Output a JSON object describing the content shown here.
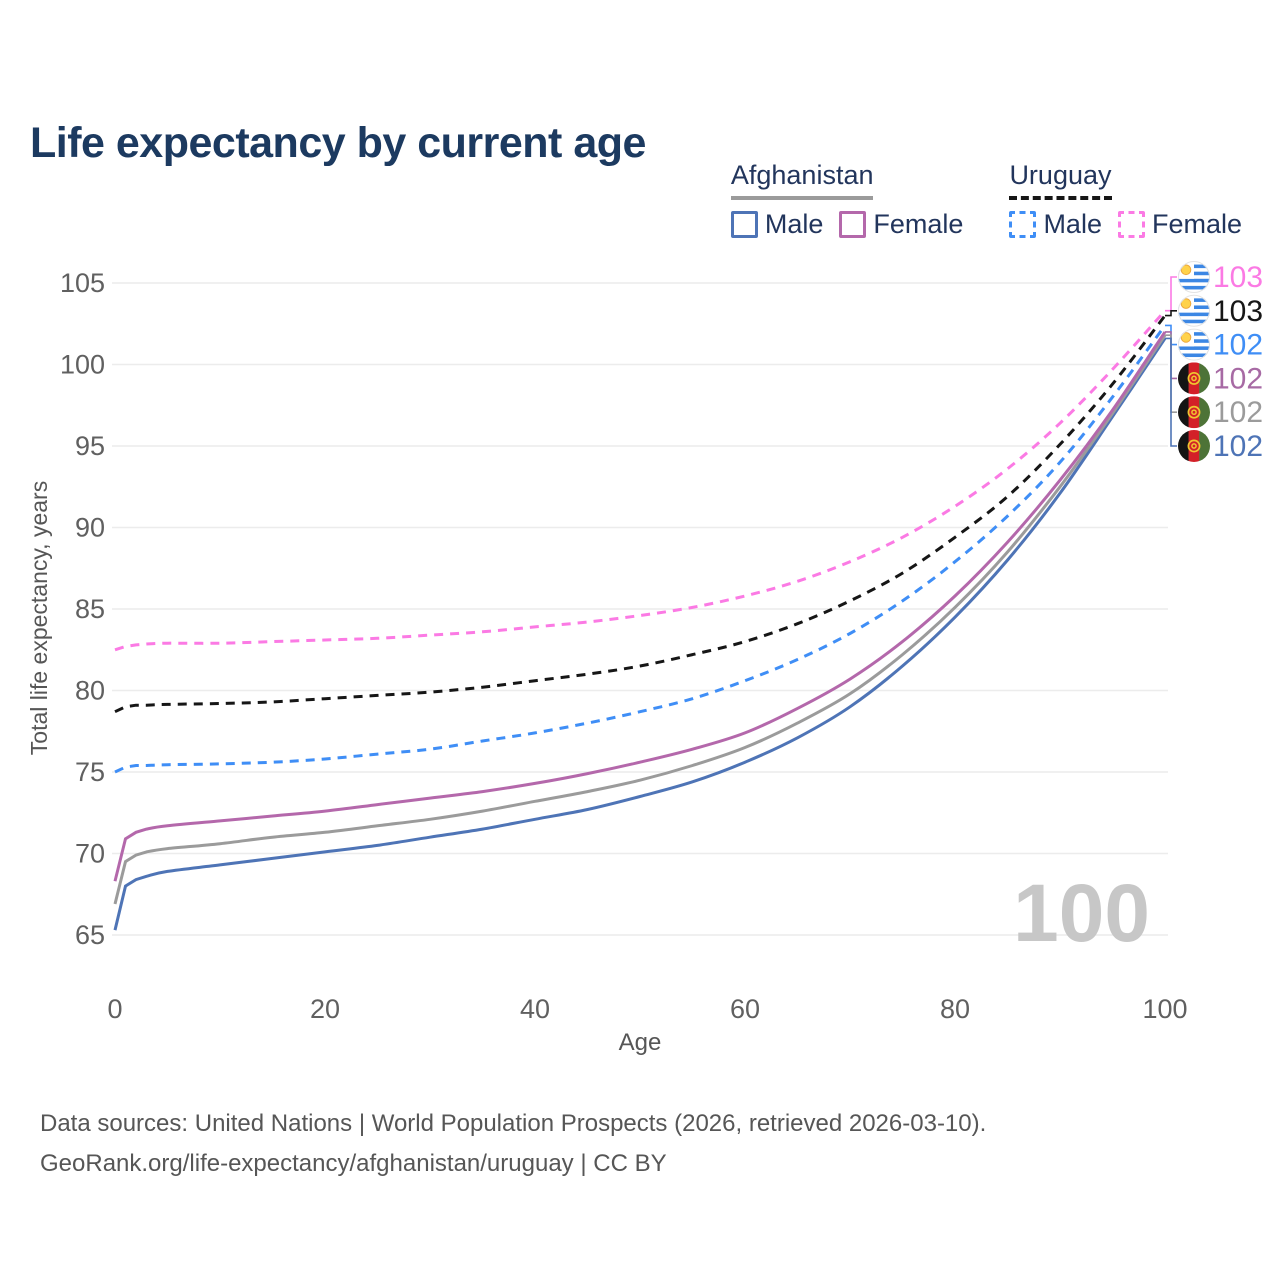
{
  "title": "Life expectancy by current age",
  "watermark": "100",
  "legend": {
    "groups": [
      {
        "country": "Afghanistan",
        "underline_style": "solid",
        "underline_color": "#9b9b9b",
        "items": [
          {
            "label": "Male",
            "color": "#4e74b6",
            "dashed": false
          },
          {
            "label": "Female",
            "color": "#b468ab",
            "dashed": false
          }
        ]
      },
      {
        "country": "Uruguay",
        "underline_style": "dashed",
        "underline_color": "#161616",
        "items": [
          {
            "label": "Male",
            "color": "#3f8ef6",
            "dashed": true
          },
          {
            "label": "Female",
            "color": "#fb7ae4",
            "dashed": true
          }
        ]
      }
    ]
  },
  "chart_data": {
    "type": "line",
    "title": "Life expectancy by current age",
    "xlabel": "Age",
    "ylabel": "Total life expectancy, years",
    "xlim": [
      0,
      100
    ],
    "ylim": [
      63.5,
      106.5
    ],
    "x_ticks": [
      0,
      20,
      40,
      60,
      80,
      100
    ],
    "y_ticks": [
      65,
      70,
      75,
      80,
      85,
      90,
      95,
      100,
      105
    ],
    "grid": "horizontal",
    "legend_position": "top-right",
    "ages": [
      0,
      1,
      2,
      3,
      5,
      10,
      15,
      20,
      25,
      30,
      35,
      40,
      45,
      50,
      55,
      60,
      65,
      70,
      75,
      80,
      85,
      90,
      95,
      100
    ],
    "series": [
      {
        "id": "uruguay-female",
        "name": "Uruguay Female",
        "color": "#fb7ae4",
        "dashed": true,
        "values": [
          82.5,
          82.7,
          82.8,
          82.85,
          82.9,
          82.9,
          83.0,
          83.1,
          83.2,
          83.4,
          83.6,
          83.9,
          84.2,
          84.6,
          85.1,
          85.8,
          86.7,
          87.9,
          89.4,
          91.3,
          93.6,
          96.4,
          99.7,
          103.3
        ]
      },
      {
        "id": "uruguay-both",
        "name": "Uruguay",
        "color": "#161616",
        "dashed": true,
        "values": [
          78.7,
          79.0,
          79.1,
          79.1,
          79.15,
          79.2,
          79.3,
          79.5,
          79.7,
          79.9,
          80.2,
          80.6,
          81.0,
          81.5,
          82.2,
          83.0,
          84.1,
          85.5,
          87.2,
          89.4,
          91.9,
          95.1,
          98.8,
          103.0
        ]
      },
      {
        "id": "uruguay-male",
        "name": "Uruguay Male",
        "color": "#3f8ef6",
        "dashed": true,
        "values": [
          75.0,
          75.3,
          75.4,
          75.4,
          75.45,
          75.5,
          75.6,
          75.8,
          76.1,
          76.4,
          76.9,
          77.4,
          78.0,
          78.7,
          79.5,
          80.6,
          81.9,
          83.5,
          85.5,
          87.9,
          90.7,
          94.0,
          98.0,
          102.4
        ]
      },
      {
        "id": "afghanistan-male",
        "name": "Afghanistan Male",
        "color": "#4e74b6",
        "dashed": false,
        "values": [
          65.3,
          68.0,
          68.4,
          68.6,
          68.9,
          69.3,
          69.7,
          70.1,
          70.5,
          71.0,
          71.5,
          72.1,
          72.7,
          73.5,
          74.4,
          75.6,
          77.1,
          79.0,
          81.5,
          84.5,
          88.0,
          92.1,
          96.8,
          101.6
        ]
      },
      {
        "id": "afghanistan-both",
        "name": "Afghanistan",
        "color": "#9b9b9b",
        "dashed": false,
        "values": [
          66.9,
          69.5,
          69.9,
          70.1,
          70.3,
          70.6,
          71.0,
          71.3,
          71.7,
          72.1,
          72.6,
          73.2,
          73.8,
          74.5,
          75.4,
          76.5,
          78.0,
          79.8,
          82.2,
          85.1,
          88.5,
          92.5,
          97.0,
          101.8
        ]
      },
      {
        "id": "afghanistan-female",
        "name": "Afghanistan Female",
        "color": "#b468ab",
        "dashed": false,
        "values": [
          68.3,
          70.9,
          71.3,
          71.5,
          71.7,
          72.0,
          72.3,
          72.6,
          73.0,
          73.4,
          73.8,
          74.3,
          74.9,
          75.6,
          76.4,
          77.4,
          78.9,
          80.7,
          83.0,
          85.8,
          89.1,
          92.9,
          97.2,
          102.0
        ]
      }
    ]
  },
  "end_labels": [
    {
      "value": "103",
      "series_id": "uruguay-female",
      "color": "#fb7ae4",
      "flag": "uy"
    },
    {
      "value": "103",
      "series_id": "uruguay-both",
      "color": "#161616",
      "flag": "uy"
    },
    {
      "value": "102",
      "series_id": "uruguay-male",
      "color": "#3f8ef6",
      "flag": "uy"
    },
    {
      "value": "102",
      "series_id": "afghanistan-female",
      "color": "#a76aa4",
      "flag": "af"
    },
    {
      "value": "102",
      "series_id": "afghanistan-both",
      "color": "#9b9b9b",
      "flag": "af"
    },
    {
      "value": "102",
      "series_id": "afghanistan-male",
      "color": "#4e74b6",
      "flag": "af"
    }
  ],
  "footer": {
    "line1": "Data sources: United Nations | World Population Prospects (2026, retrieved 2026-03-10).",
    "line2": "GeoRank.org/life-expectancy/afghanistan/uruguay | CC BY"
  }
}
